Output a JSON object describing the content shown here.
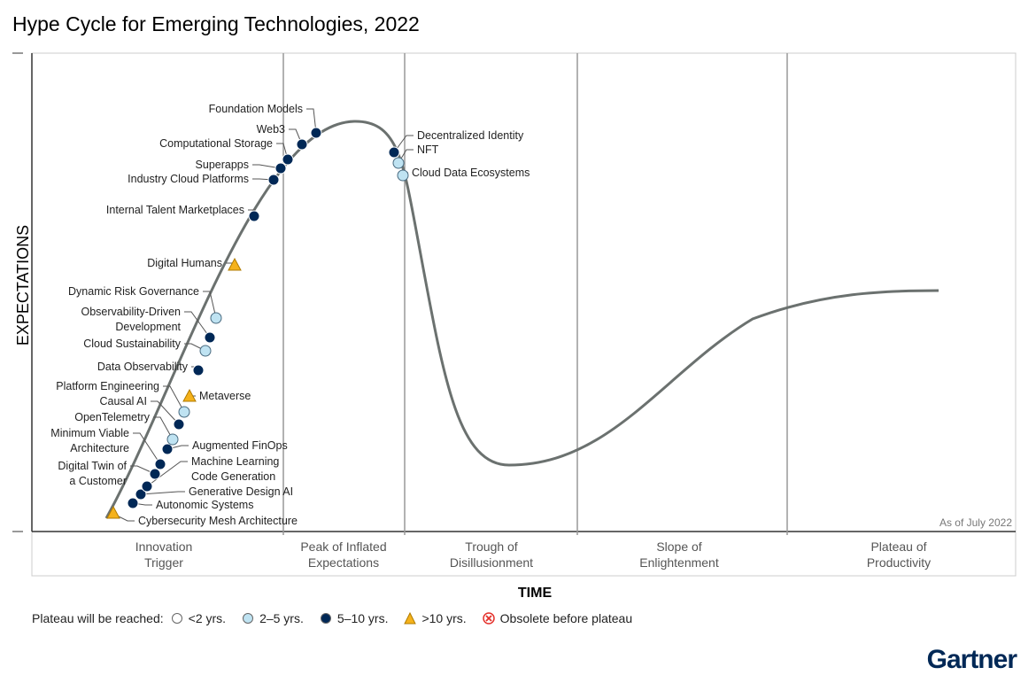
{
  "title": "Hype Cycle for Emerging Technologies, 2022",
  "y_axis_label": "EXPECTATIONS",
  "x_axis_label": "TIME",
  "as_of": "As of July 2022",
  "phases": [
    [
      "Innovation",
      "Trigger"
    ],
    [
      "Peak of Inflated",
      "Expectations"
    ],
    [
      "Trough of",
      "Disillusionment"
    ],
    [
      "Slope of",
      "Enlightenment"
    ],
    [
      "Plateau of",
      "Productivity"
    ]
  ],
  "legend": {
    "label": "Plateau will be reached:",
    "items": [
      {
        "key": "lt2",
        "text": "<2 yrs."
      },
      {
        "key": "2to5",
        "text": "2–5 yrs."
      },
      {
        "key": "5to10",
        "text": "5–10 yrs."
      },
      {
        "key": "gt10",
        "text": ">10 yrs."
      },
      {
        "key": "obsolete",
        "text": "Obsolete before plateau"
      }
    ]
  },
  "colors": {
    "lt2": "#ffffff",
    "2to5": "#bfe3f2",
    "5to10": "#002856",
    "gt10": "#f5b21b",
    "obsolete": "#e4312b",
    "curve": "#6b716f"
  },
  "technologies": [
    {
      "name": [
        "Cybersecurity Mesh Architecture"
      ],
      "plateau": "gt10"
    },
    {
      "name": [
        "Autonomic Systems"
      ],
      "plateau": "5to10"
    },
    {
      "name": [
        "Generative Design AI"
      ],
      "plateau": "5to10"
    },
    {
      "name": [
        "Machine Learning",
        "Code Generation"
      ],
      "plateau": "5to10"
    },
    {
      "name": [
        "Digital Twin of",
        "a Customer"
      ],
      "plateau": "5to10"
    },
    {
      "name": [
        "Minimum Viable",
        "Architecture"
      ],
      "plateau": "5to10"
    },
    {
      "name": [
        "Augmented FinOps"
      ],
      "plateau": "5to10"
    },
    {
      "name": [
        "OpenTelemetry"
      ],
      "plateau": "2to5"
    },
    {
      "name": [
        "Causal AI"
      ],
      "plateau": "5to10"
    },
    {
      "name": [
        "Platform Engineering"
      ],
      "plateau": "2to5"
    },
    {
      "name": [
        "Metaverse"
      ],
      "plateau": "gt10"
    },
    {
      "name": [
        "Data Observability"
      ],
      "plateau": "5to10"
    },
    {
      "name": [
        "Cloud Sustainability"
      ],
      "plateau": "2to5"
    },
    {
      "name": [
        "Observability-Driven",
        "Development"
      ],
      "plateau": "5to10"
    },
    {
      "name": [
        "Dynamic Risk Governance"
      ],
      "plateau": "2to5"
    },
    {
      "name": [
        "Digital Humans"
      ],
      "plateau": "gt10"
    },
    {
      "name": [
        "Internal Talent Marketplaces"
      ],
      "plateau": "5to10"
    },
    {
      "name": [
        "Industry Cloud Platforms"
      ],
      "plateau": "5to10"
    },
    {
      "name": [
        "Superapps"
      ],
      "plateau": "5to10"
    },
    {
      "name": [
        "Computational Storage"
      ],
      "plateau": "5to10"
    },
    {
      "name": [
        "Web3"
      ],
      "plateau": "5to10"
    },
    {
      "name": [
        "Foundation Models"
      ],
      "plateau": "5to10"
    },
    {
      "name": [
        "Decentralized Identity"
      ],
      "plateau": "5to10"
    },
    {
      "name": [
        "NFT"
      ],
      "plateau": "2to5"
    },
    {
      "name": [
        "Cloud Data Ecosystems"
      ],
      "plateau": "2to5"
    }
  ],
  "logo": "Gartner"
}
